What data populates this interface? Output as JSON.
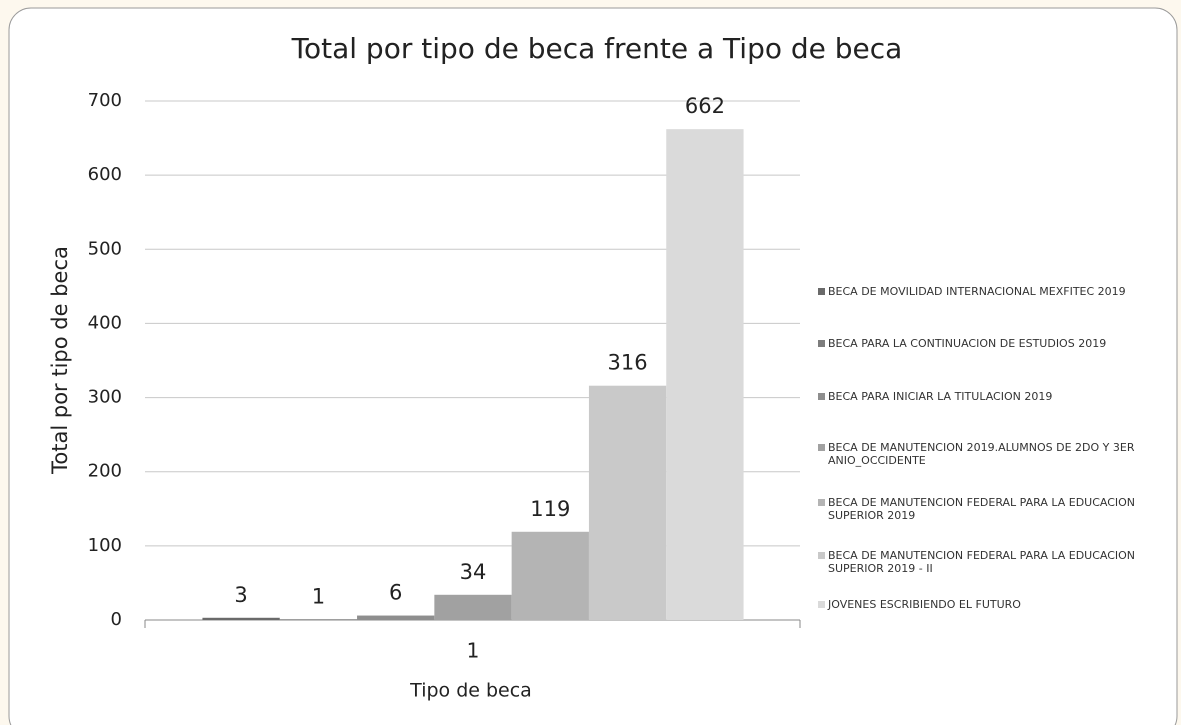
{
  "chart_data": {
    "type": "bar",
    "title": "Total por tipo de beca frente a Tipo de beca",
    "x_label": "Tipo de beca",
    "y_label": "Total por tipo de beca",
    "categories": [
      "1"
    ],
    "series": [
      {
        "name": "BECA DE MOVILIDAD INTERNACIONAL MEXFITEC 2019",
        "color": "#6a6a6a",
        "values": [
          3
        ]
      },
      {
        "name": "BECA PARA LA CONTINUACION DE ESTUDIOS 2019",
        "color": "#7d7d7d",
        "values": [
          1
        ]
      },
      {
        "name": "BECA PARA INICIAR LA TITULACION 2019",
        "color": "#8e8e8e",
        "values": [
          6
        ]
      },
      {
        "name": "BECA DE MANUTENCION 2019.ALUMNOS DE 2DO Y 3ER ANIO_OCCIDENTE",
        "color": "#a1a1a1",
        "values": [
          34
        ]
      },
      {
        "name": "BECA DE MANUTENCION FEDERAL PARA LA EDUCACION SUPERIOR 2019",
        "color": "#b4b4b4",
        "values": [
          119
        ]
      },
      {
        "name": "BECA DE MANUTENCION FEDERAL PARA LA EDUCACION SUPERIOR 2019 - II",
        "color": "#c9c9c9",
        "values": [
          316
        ]
      },
      {
        "name": "JOVENES ESCRIBIENDO EL FUTURO",
        "color": "#dadada",
        "values": [
          662
        ]
      }
    ],
    "ylim": [
      0,
      700
    ],
    "yticks": [
      0,
      100,
      200,
      300,
      400,
      500,
      600,
      700
    ],
    "grid": true,
    "legend": "right"
  }
}
